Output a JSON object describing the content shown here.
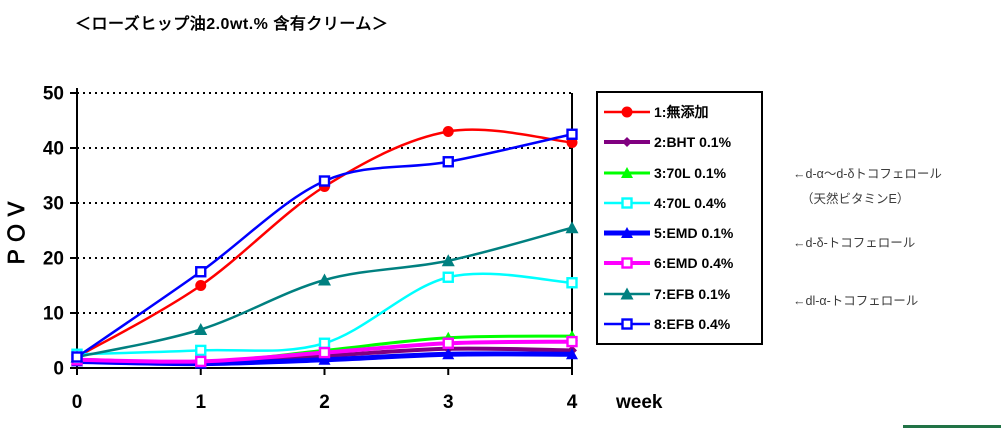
{
  "title": "＜ローズヒップ油2.0wt.% 含有クリーム＞",
  "chart_data": {
    "type": "line",
    "x": [
      0,
      1,
      2,
      3,
      4
    ],
    "xlabel": "week",
    "ylabel": "ＰＯＶ",
    "ylim": [
      0,
      50
    ],
    "ytick_step": 10,
    "grid": "horizontal-dotted",
    "legend_position": "right",
    "line_style": "smoothed",
    "series": [
      {
        "name": "1:無添加",
        "color": "#FF0000",
        "marker": "circle",
        "line_width": 2.5,
        "marker_size": 5.5,
        "values": [
          2,
          15,
          33,
          43,
          41
        ]
      },
      {
        "name": "2:BHT 0.1%",
        "color": "#800080",
        "marker": "diamond",
        "line_width": 4,
        "marker_size": 5,
        "values": [
          1.5,
          1,
          2.2,
          3.5,
          3.2
        ]
      },
      {
        "name": "3:70L 0.1%",
        "color": "#00FF00",
        "marker": "triangle",
        "line_width": 3,
        "marker_size": 6,
        "values": [
          1.5,
          1,
          3.2,
          5.5,
          5.8
        ]
      },
      {
        "name": "4:70L 0.4%",
        "color": "#00FFFF",
        "marker": "square-open",
        "line_width": 2.5,
        "marker_size": 6,
        "values": [
          2.5,
          3.2,
          4.5,
          16.5,
          15.5
        ]
      },
      {
        "name": "5:EMD 0.1%",
        "color": "#0000FF",
        "marker": "triangle",
        "line_width": 5,
        "marker_size": 6,
        "values": [
          1.2,
          0.8,
          1.5,
          2.5,
          2.5
        ]
      },
      {
        "name": "6:EMD 0.4%",
        "color": "#FF00FF",
        "marker": "square-open",
        "line_width": 4,
        "marker_size": 6,
        "values": [
          1.5,
          1.2,
          2.8,
          4.5,
          4.8
        ]
      },
      {
        "name": "7:EFB 0.1%",
        "color": "#008080",
        "marker": "triangle",
        "line_width": 2.5,
        "marker_size": 6.5,
        "values": [
          2,
          7,
          16,
          19.5,
          25.5
        ]
      },
      {
        "name": "8:EFB 0.4%",
        "color": "#0000FF",
        "marker": "square-open",
        "line_width": 2.5,
        "marker_size": 6,
        "values": [
          2,
          17.5,
          34,
          37.5,
          42.5
        ]
      }
    ]
  },
  "annotations": [
    {
      "lines": [
        "←d-α～d-δトコフェロール",
        "（天然ビタミンE）"
      ]
    },
    {
      "lines": [
        "←d-δ-トコフェロール"
      ]
    },
    {
      "lines": [
        "←dl-α-トコフェロール"
      ]
    }
  ],
  "decor": {
    "underline_color": "#217346"
  }
}
